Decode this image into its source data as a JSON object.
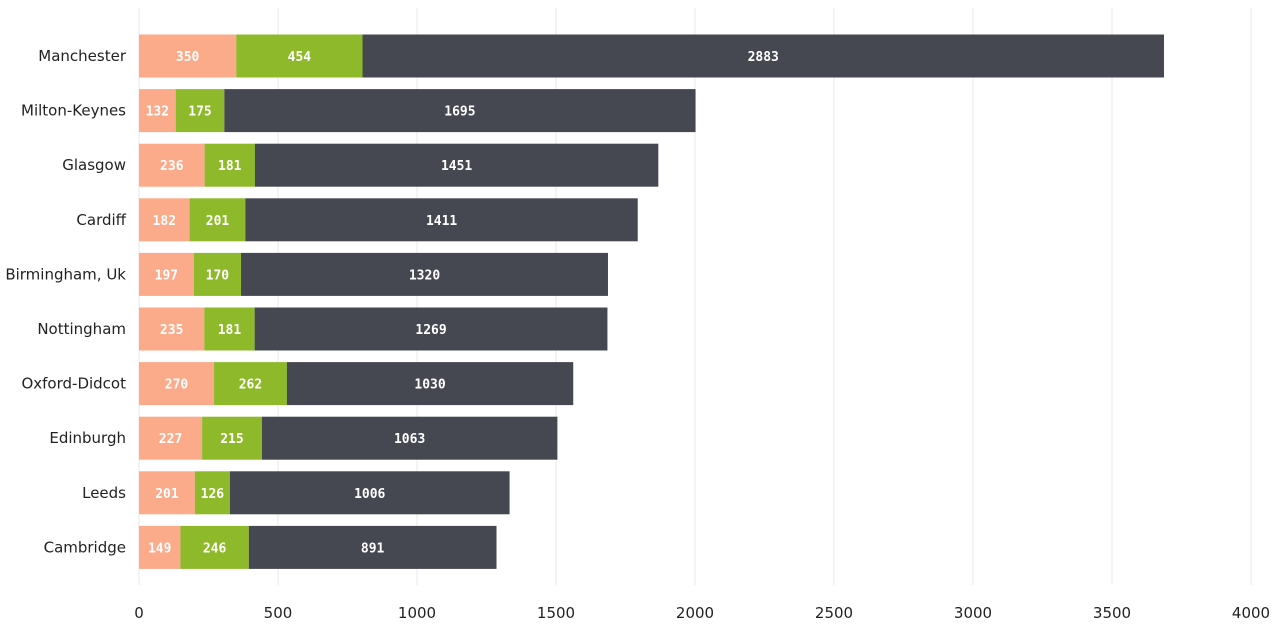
{
  "chart_data": {
    "type": "bar",
    "orientation": "horizontal",
    "stacked": true,
    "title": "",
    "xlabel": "",
    "ylabel": "",
    "xlim": [
      0,
      4000
    ],
    "x_ticks": [
      0,
      500,
      1000,
      1500,
      2000,
      2500,
      3000,
      3500,
      4000
    ],
    "grid": "vertical",
    "legend": "none",
    "categories": [
      "Manchester",
      "Milton-Keynes",
      "Glasgow",
      "Cardiff",
      "Birmingham, Uk",
      "Nottingham",
      "Oxford-Didcot",
      "Edinburgh",
      "Leeds",
      "Cambridge"
    ],
    "series": [
      {
        "color": "#fbaa8a",
        "values": [
          350,
          132,
          236,
          182,
          197,
          235,
          270,
          227,
          201,
          149
        ]
      },
      {
        "color": "#8db92a",
        "values": [
          454,
          175,
          181,
          201,
          170,
          181,
          262,
          215,
          126,
          246
        ]
      },
      {
        "color": "#464851",
        "values": [
          2883,
          1695,
          1451,
          1411,
          1320,
          1269,
          1030,
          1063,
          1006,
          891
        ]
      }
    ]
  }
}
